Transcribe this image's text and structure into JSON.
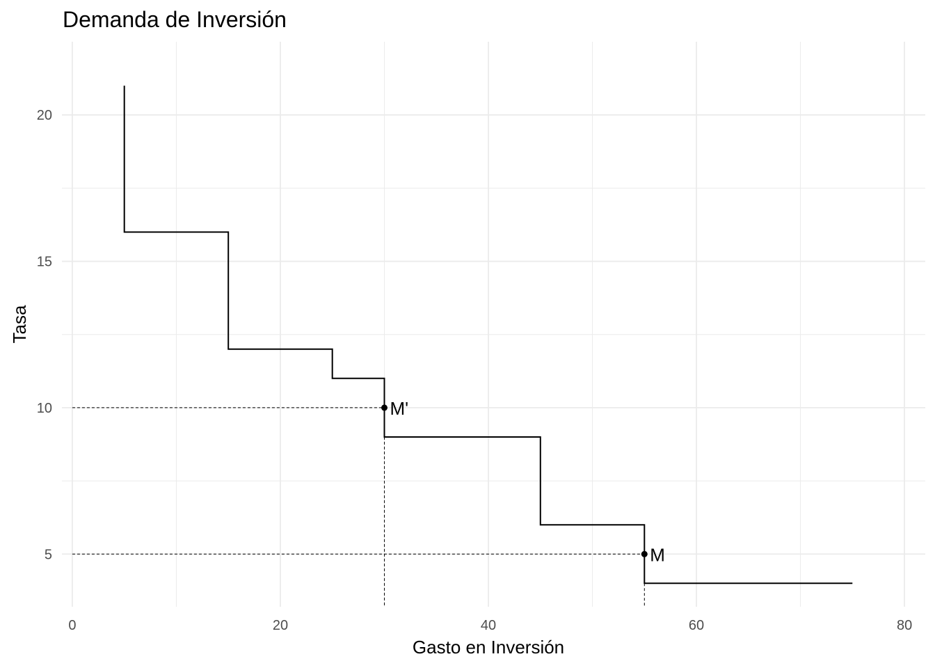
{
  "chart_data": {
    "type": "line",
    "title": "Demanda de Inversión",
    "xlabel": "Gasto en Inversión",
    "ylabel": "Tasa",
    "xlim": [
      -1,
      82
    ],
    "ylim": [
      3.2,
      22.5
    ],
    "x_ticks": [
      0,
      20,
      40,
      60,
      80
    ],
    "y_ticks": [
      5,
      10,
      15,
      20
    ],
    "grid": true,
    "legend": "none",
    "series": [
      {
        "style": "step",
        "points": [
          [
            5,
            21
          ],
          [
            5,
            16
          ],
          [
            15,
            16
          ],
          [
            15,
            12
          ],
          [
            25,
            12
          ],
          [
            25,
            11
          ],
          [
            30,
            11
          ],
          [
            30,
            9
          ],
          [
            45,
            9
          ],
          [
            45,
            6
          ],
          [
            55,
            6
          ],
          [
            55,
            4
          ],
          [
            75,
            4
          ]
        ]
      }
    ],
    "annotations": [
      {
        "label": "M'",
        "x": 30,
        "y": 10
      },
      {
        "label": "M",
        "x": 55,
        "y": 5
      }
    ],
    "colors": {
      "line": "#000000",
      "grid": "#ebebeb",
      "tick_text": "#4d4d4d"
    }
  }
}
